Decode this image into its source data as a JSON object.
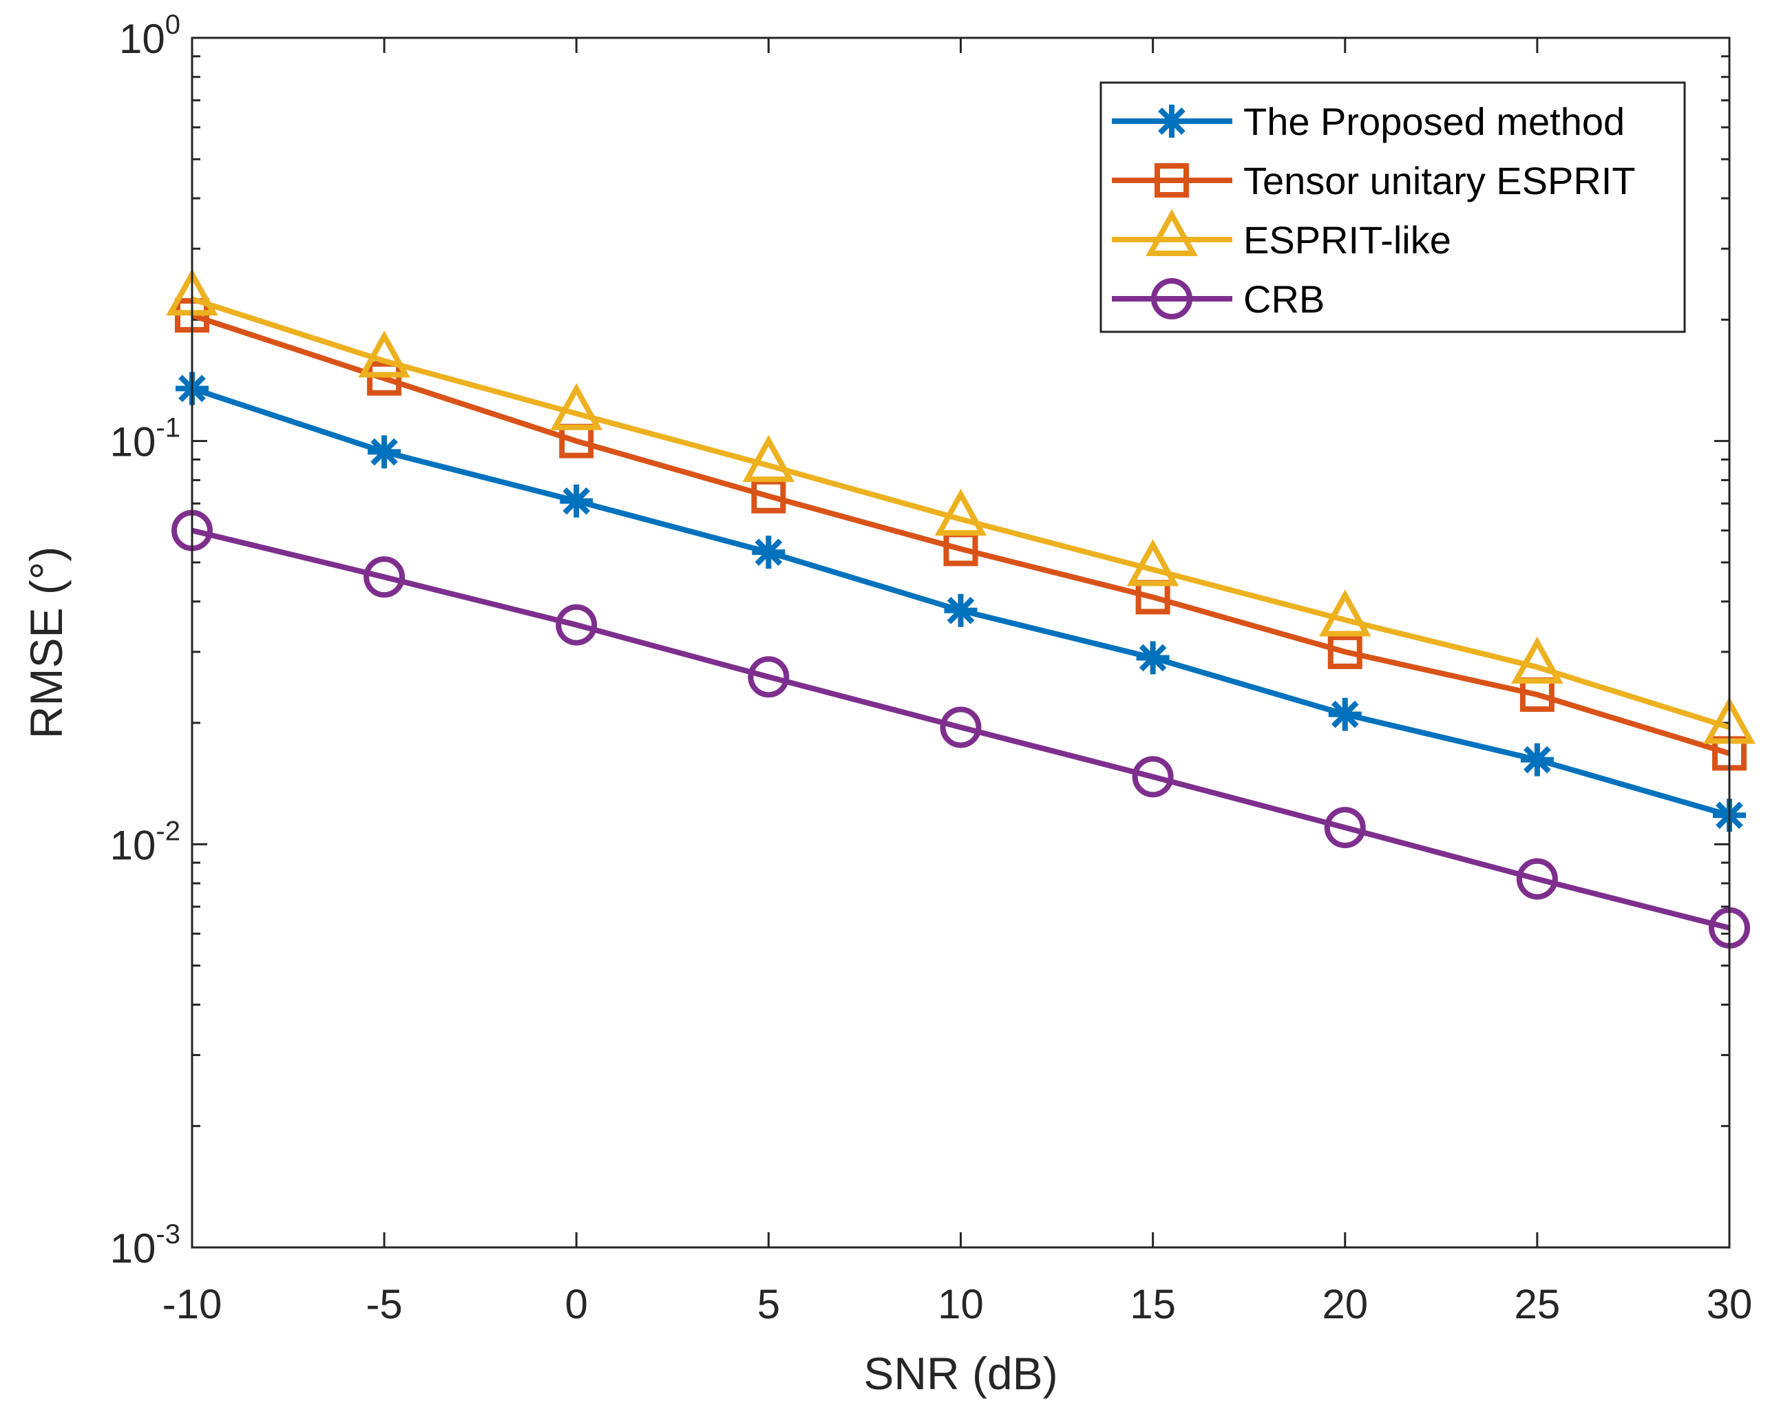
{
  "chart_data": {
    "type": "line",
    "xlabel": "SNR (dB)",
    "ylabel": "RMSE (°)",
    "yscale": "log",
    "xlim": [
      -10,
      30
    ],
    "ylim": [
      0.001,
      1
    ],
    "x": [
      -10,
      -5,
      0,
      5,
      10,
      15,
      20,
      25,
      30
    ],
    "x_ticks": [
      -10,
      -5,
      0,
      5,
      10,
      15,
      20,
      25,
      30
    ],
    "y_ticks": [
      {
        "value": 0.001,
        "base": "10",
        "exp": "-3"
      },
      {
        "value": 0.01,
        "base": "10",
        "exp": "-2"
      },
      {
        "value": 0.1,
        "base": "10",
        "exp": "-1"
      },
      {
        "value": 1,
        "base": "10",
        "exp": "0"
      }
    ],
    "legend_position": "top-right",
    "series": [
      {
        "name": "The Proposed method",
        "color": "#0072BD",
        "marker": "asterisk",
        "values": [
          0.135,
          0.094,
          0.071,
          0.053,
          0.038,
          0.029,
          0.021,
          0.0162,
          0.0118
        ]
      },
      {
        "name": "Tensor unitary ESPRIT",
        "color": "#D95319",
        "marker": "square",
        "values": [
          0.205,
          0.143,
          0.1,
          0.073,
          0.054,
          0.041,
          0.03,
          0.0235,
          0.0168
        ]
      },
      {
        "name": "ESPRIT-like",
        "color": "#EDB120",
        "marker": "triangle",
        "values": [
          0.225,
          0.158,
          0.117,
          0.087,
          0.064,
          0.048,
          0.036,
          0.0275,
          0.0195
        ]
      },
      {
        "name": "CRB",
        "color": "#7E2F8E",
        "marker": "circle",
        "values": [
          0.06,
          0.046,
          0.035,
          0.026,
          0.0195,
          0.0147,
          0.011,
          0.0082,
          0.0062
        ]
      }
    ]
  }
}
